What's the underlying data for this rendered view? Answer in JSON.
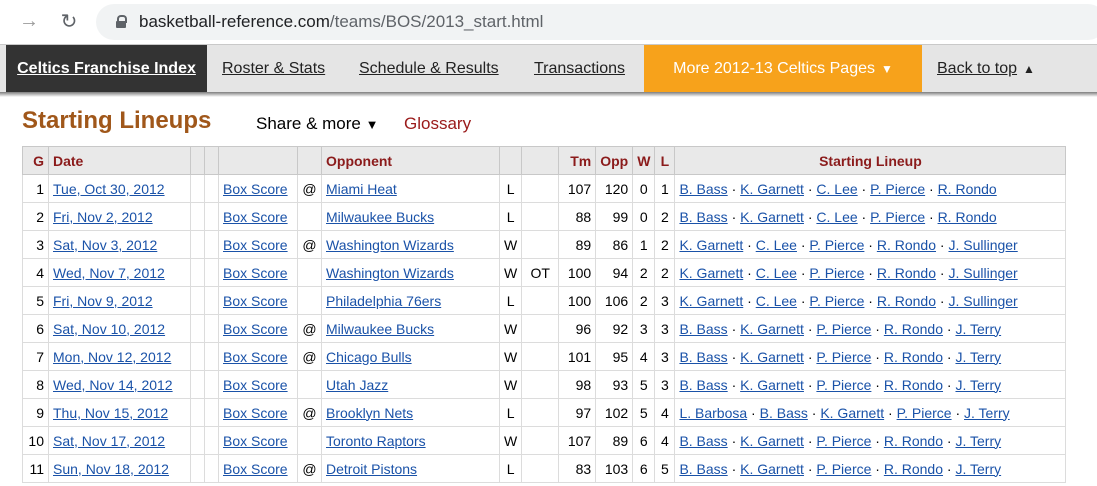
{
  "browser": {
    "url_host": "basketball-reference.com",
    "url_path": "/teams/BOS/2013_start.html"
  },
  "site_nav": {
    "franchise": "Celtics Franchise Index",
    "roster": "Roster & Stats",
    "schedule": "Schedule & Results",
    "transactions": "Transactions",
    "more": "More 2012-13 Celtics Pages",
    "back_to_top": "Back to top"
  },
  "section": {
    "title": "Starting Lineups",
    "share": "Share & more",
    "glossary": "Glossary"
  },
  "table": {
    "headers": {
      "g": "G",
      "date": "Date",
      "opponent": "Opponent",
      "tm": "Tm",
      "opp": "Opp",
      "w": "W",
      "l": "L",
      "lineup": "Starting Lineup"
    },
    "box_score_label": "Box Score",
    "rows": [
      {
        "g": "1",
        "date": "Tue, Oct 30, 2012",
        "at": "@",
        "opponent": "Miami Heat",
        "result": "L",
        "ot": "",
        "tm": "107",
        "opp": "120",
        "w": "0",
        "l": "1",
        "lineup": [
          "B. Bass",
          "K. Garnett",
          "C. Lee",
          "P. Pierce",
          "R. Rondo"
        ]
      },
      {
        "g": "2",
        "date": "Fri, Nov 2, 2012",
        "at": "",
        "opponent": "Milwaukee Bucks",
        "result": "L",
        "ot": "",
        "tm": "88",
        "opp": "99",
        "w": "0",
        "l": "2",
        "lineup": [
          "B. Bass",
          "K. Garnett",
          "C. Lee",
          "P. Pierce",
          "R. Rondo"
        ]
      },
      {
        "g": "3",
        "date": "Sat, Nov 3, 2012",
        "at": "@",
        "opponent": "Washington Wizards",
        "result": "W",
        "ot": "",
        "tm": "89",
        "opp": "86",
        "w": "1",
        "l": "2",
        "lineup": [
          "K. Garnett",
          "C. Lee",
          "P. Pierce",
          "R. Rondo",
          "J. Sullinger"
        ]
      },
      {
        "g": "4",
        "date": "Wed, Nov 7, 2012",
        "at": "",
        "opponent": "Washington Wizards",
        "result": "W",
        "ot": "OT",
        "tm": "100",
        "opp": "94",
        "w": "2",
        "l": "2",
        "lineup": [
          "K. Garnett",
          "C. Lee",
          "P. Pierce",
          "R. Rondo",
          "J. Sullinger"
        ]
      },
      {
        "g": "5",
        "date": "Fri, Nov 9, 2012",
        "at": "",
        "opponent": "Philadelphia 76ers",
        "result": "L",
        "ot": "",
        "tm": "100",
        "opp": "106",
        "w": "2",
        "l": "3",
        "lineup": [
          "K. Garnett",
          "C. Lee",
          "P. Pierce",
          "R. Rondo",
          "J. Sullinger"
        ]
      },
      {
        "g": "6",
        "date": "Sat, Nov 10, 2012",
        "at": "@",
        "opponent": "Milwaukee Bucks",
        "result": "W",
        "ot": "",
        "tm": "96",
        "opp": "92",
        "w": "3",
        "l": "3",
        "lineup": [
          "B. Bass",
          "K. Garnett",
          "P. Pierce",
          "R. Rondo",
          "J. Terry"
        ]
      },
      {
        "g": "7",
        "date": "Mon, Nov 12, 2012",
        "at": "@",
        "opponent": "Chicago Bulls",
        "result": "W",
        "ot": "",
        "tm": "101",
        "opp": "95",
        "w": "4",
        "l": "3",
        "lineup": [
          "B. Bass",
          "K. Garnett",
          "P. Pierce",
          "R. Rondo",
          "J. Terry"
        ]
      },
      {
        "g": "8",
        "date": "Wed, Nov 14, 2012",
        "at": "",
        "opponent": "Utah Jazz",
        "result": "W",
        "ot": "",
        "tm": "98",
        "opp": "93",
        "w": "5",
        "l": "3",
        "lineup": [
          "B. Bass",
          "K. Garnett",
          "P. Pierce",
          "R. Rondo",
          "J. Terry"
        ]
      },
      {
        "g": "9",
        "date": "Thu, Nov 15, 2012",
        "at": "@",
        "opponent": "Brooklyn Nets",
        "result": "L",
        "ot": "",
        "tm": "97",
        "opp": "102",
        "w": "5",
        "l": "4",
        "lineup": [
          "L. Barbosa",
          "B. Bass",
          "K. Garnett",
          "P. Pierce",
          "J. Terry"
        ]
      },
      {
        "g": "10",
        "date": "Sat, Nov 17, 2012",
        "at": "",
        "opponent": "Toronto Raptors",
        "result": "W",
        "ot": "",
        "tm": "107",
        "opp": "89",
        "w": "6",
        "l": "4",
        "lineup": [
          "B. Bass",
          "K. Garnett",
          "P. Pierce",
          "R. Rondo",
          "J. Terry"
        ]
      },
      {
        "g": "11",
        "date": "Sun, Nov 18, 2012",
        "at": "@",
        "opponent": "Detroit Pistons",
        "result": "L",
        "ot": "",
        "tm": "83",
        "opp": "103",
        "w": "6",
        "l": "5",
        "lineup": [
          "B. Bass",
          "K. Garnett",
          "P. Pierce",
          "R. Rondo",
          "J. Terry"
        ]
      }
    ]
  }
}
